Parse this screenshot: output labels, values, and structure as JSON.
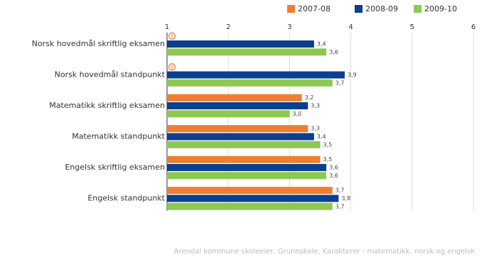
{
  "chart_data": {
    "type": "barh",
    "categories": [
      "Norsk hovedmål skriftlig eksamen",
      "Norsk hovedmål standpunkt",
      "Matematikk skriftlig eksamen",
      "Matematikk standpunkt",
      "Engelsk skriftlig eksamen",
      "Engelsk standpunkt"
    ],
    "series": [
      {
        "name": "2007-08",
        "color": "#f07d32",
        "values": [
          null,
          null,
          3.2,
          3.3,
          3.5,
          3.7
        ],
        "value_labels": [
          null,
          null,
          "3,2",
          "3,3",
          "3,5",
          "3,7"
        ]
      },
      {
        "name": "2008-09",
        "color": "#0b3f8f",
        "values": [
          3.4,
          3.9,
          3.3,
          3.4,
          3.6,
          3.8
        ],
        "value_labels": [
          "3,4",
          "3,9",
          "3,3",
          "3,4",
          "3,6",
          "3,8"
        ]
      },
      {
        "name": "2009-10",
        "color": "#8dc851",
        "values": [
          3.6,
          3.7,
          3.0,
          3.5,
          3.6,
          3.7
        ],
        "value_labels": [
          "3,6",
          "3,7",
          "3,0",
          "3,5",
          "3,6",
          "3,7"
        ]
      }
    ],
    "xlim": [
      1,
      6
    ],
    "xticks": [
      1,
      2,
      3,
      4,
      5,
      6
    ],
    "grid": true,
    "legend_position": "top-right",
    "source": "Arendal kommune skoleeier, Grunnskole, Karakterer - matematikk, norsk og engelsk"
  }
}
